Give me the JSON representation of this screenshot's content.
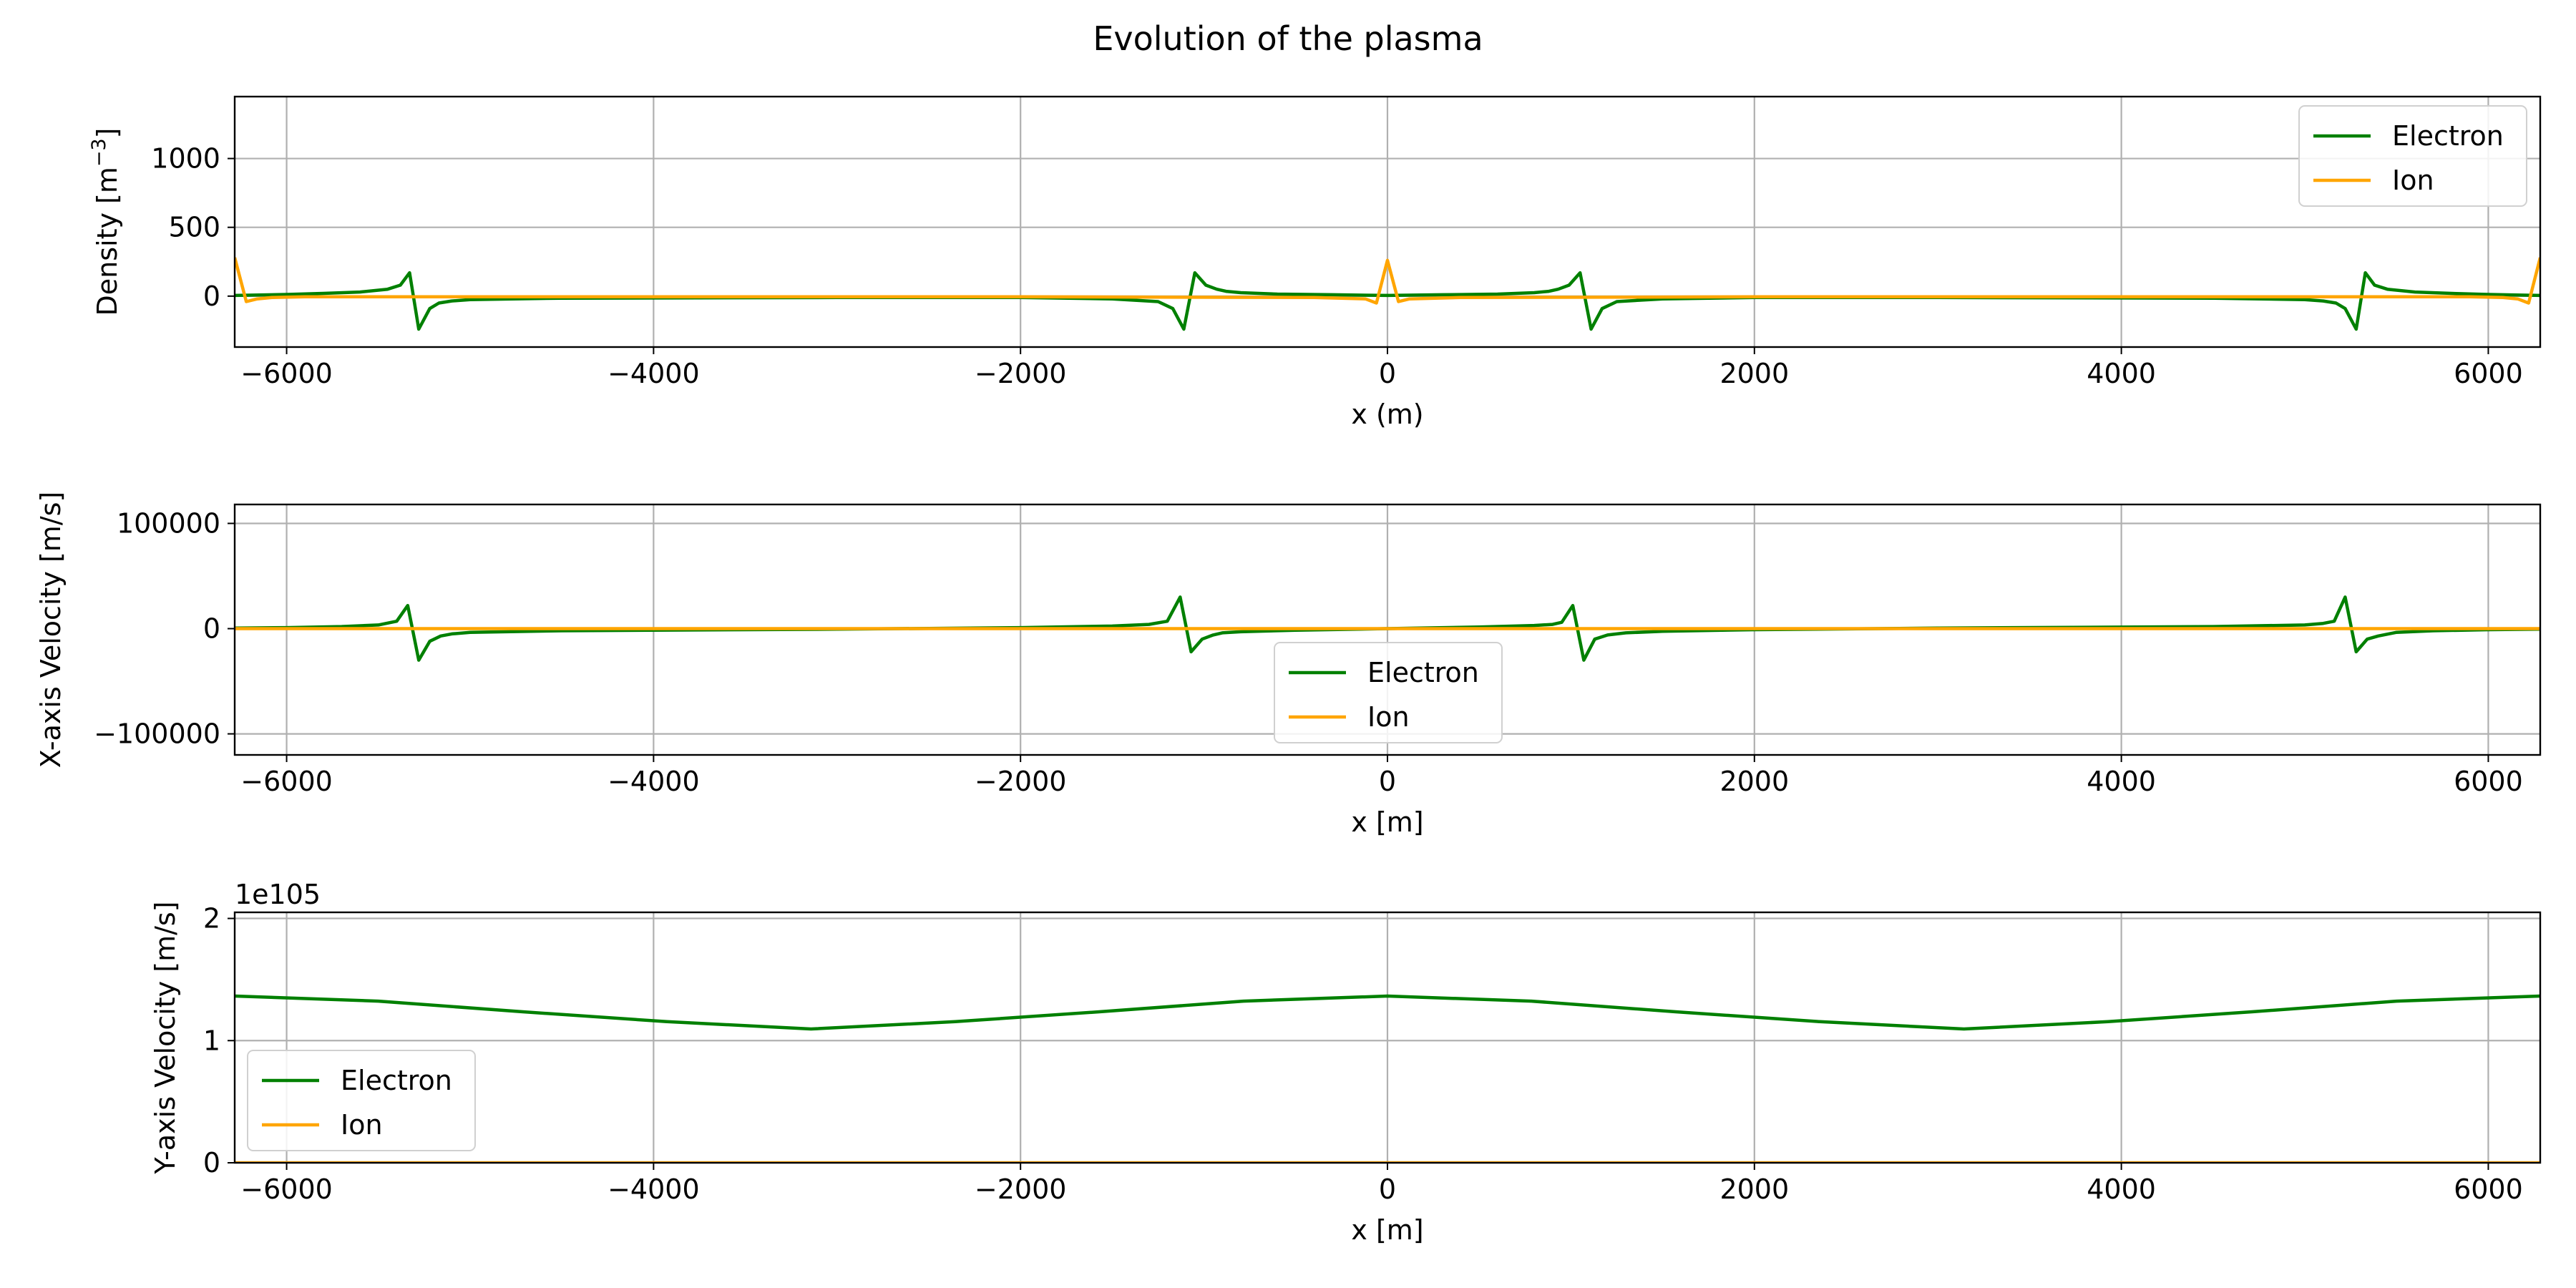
{
  "figure": {
    "title": "Evolution of the plasma"
  },
  "chart_data": [
    {
      "type": "line",
      "panel": "density",
      "xlabel": "x (m)",
      "ylabel": "Density [m",
      "ylabel_sup": "−3",
      "ylabel_end": "]",
      "xlim": [
        -6283,
        6283
      ],
      "ylim": [
        -370,
        1450
      ],
      "xticks": [
        -6000,
        -4000,
        -2000,
        0,
        2000,
        4000,
        6000
      ],
      "xtick_labels": [
        "−6000",
        "−4000",
        "−2000",
        "0",
        "2000",
        "4000",
        "6000"
      ],
      "yticks": [
        0,
        500,
        1000
      ],
      "ytick_labels": [
        "0",
        "500",
        "1000"
      ],
      "grid": true,
      "legend_position": "upper right",
      "series": [
        {
          "name": "Electron",
          "color": "#008000",
          "x": [
            -6283,
            -6150,
            -6000,
            -5800,
            -5600,
            -5450,
            -5380,
            -5330,
            -5280,
            -5220,
            -5170,
            -5100,
            -5000,
            -4500,
            -3000,
            -2000,
            -1500,
            -1250,
            -1170,
            -1110,
            -1050,
            -990,
            -930,
            -880,
            -800,
            -600,
            -300,
            0,
            300,
            600,
            800,
            880,
            930,
            990,
            1050,
            1110,
            1170,
            1250,
            1500,
            2000,
            3000,
            4500,
            5000,
            5100,
            5170,
            5220,
            5280,
            5330,
            5380,
            5450,
            5600,
            5800,
            6000,
            6150,
            6283
          ],
          "y": [
            5,
            8,
            12,
            20,
            30,
            50,
            80,
            170,
            -240,
            -90,
            -50,
            -35,
            -25,
            -15,
            -10,
            -10,
            -20,
            -40,
            -90,
            -240,
            170,
            80,
            50,
            35,
            25,
            15,
            10,
            5,
            10,
            15,
            25,
            35,
            50,
            80,
            170,
            -240,
            -90,
            -40,
            -20,
            -10,
            -10,
            -15,
            -25,
            -35,
            -50,
            -90,
            -240,
            170,
            80,
            50,
            30,
            20,
            12,
            8,
            5
          ]
        },
        {
          "name": "Ion",
          "color": "#ffa500",
          "x": [
            -6283,
            -6220,
            -6160,
            -6080,
            -5900,
            -4000,
            -2000,
            -400,
            -120,
            -60,
            0,
            60,
            120,
            400,
            2000,
            4000,
            5900,
            6080,
            6160,
            6220,
            6283
          ],
          "y": [
            280,
            -40,
            -20,
            -10,
            -5,
            -5,
            -5,
            -10,
            -20,
            -50,
            260,
            -40,
            -20,
            -10,
            -5,
            -5,
            -5,
            -10,
            -20,
            -50,
            280
          ]
        }
      ]
    },
    {
      "type": "line",
      "panel": "x-velocity",
      "xlabel": "x [m]",
      "ylabel": "X-axis Velocity [m/s]",
      "xlim": [
        -6283,
        6283
      ],
      "ylim": [
        -120000,
        118000
      ],
      "xticks": [
        -6000,
        -4000,
        -2000,
        0,
        2000,
        4000,
        6000
      ],
      "xtick_labels": [
        "−6000",
        "−4000",
        "−2000",
        "0",
        "2000",
        "4000",
        "6000"
      ],
      "yticks": [
        -100000,
        0,
        100000
      ],
      "ytick_labels": [
        "−100000",
        "0",
        "100000"
      ],
      "grid": true,
      "legend_position": "lower center",
      "series": [
        {
          "name": "Electron",
          "color": "#008000",
          "x": [
            -6283,
            -6000,
            -5700,
            -5500,
            -5400,
            -5340,
            -5280,
            -5220,
            -5160,
            -5100,
            -5000,
            -4500,
            -3000,
            -2000,
            -1500,
            -1300,
            -1200,
            -1130,
            -1070,
            -1010,
            -950,
            -900,
            -800,
            -500,
            0,
            500,
            800,
            900,
            950,
            1010,
            1070,
            1130,
            1200,
            1300,
            1500,
            2000,
            3000,
            4500,
            5000,
            5100,
            5160,
            5220,
            5280,
            5340,
            5400,
            5500,
            5700,
            6000,
            6283
          ],
          "y": [
            500,
            1000,
            2000,
            3500,
            7000,
            22000,
            -30000,
            -12000,
            -7000,
            -5000,
            -3500,
            -2000,
            -500,
            1000,
            2500,
            4000,
            7000,
            30000,
            -22000,
            -10000,
            -6000,
            -4000,
            -3000,
            -1500,
            0,
            1500,
            3000,
            4000,
            6000,
            22000,
            -30000,
            -10000,
            -6000,
            -4000,
            -2500,
            -1000,
            500,
            2000,
            3500,
            5000,
            7000,
            30000,
            -22000,
            -10000,
            -7000,
            -3500,
            -2000,
            -1000,
            -500
          ]
        },
        {
          "name": "Ion",
          "color": "#ffa500",
          "x": [
            -6283,
            -3000,
            0,
            3000,
            6283
          ],
          "y": [
            0,
            0,
            0,
            0,
            0
          ]
        }
      ]
    },
    {
      "type": "line",
      "panel": "y-velocity",
      "xlabel": "x [m]",
      "ylabel": "Y-axis Velocity [m/s]",
      "offset_text": "1e105",
      "xlim": [
        -6283,
        6283
      ],
      "ylim": [
        0,
        2.05
      ],
      "xticks": [
        -6000,
        -4000,
        -2000,
        0,
        2000,
        4000,
        6000
      ],
      "xtick_labels": [
        "−6000",
        "−4000",
        "−2000",
        "0",
        "2000",
        "4000",
        "6000"
      ],
      "yticks": [
        0,
        1,
        2
      ],
      "ytick_labels": [
        "0",
        "1",
        "2"
      ],
      "grid": true,
      "legend_position": "lower left",
      "series": [
        {
          "name": "Electron",
          "color": "#008000",
          "x": [
            -6283,
            -5500,
            -4712,
            -3927,
            -3142,
            -2356,
            -1571,
            -785,
            0,
            785,
            1571,
            2356,
            3142,
            3927,
            4712,
            5500,
            6283
          ],
          "y": [
            1.365,
            1.323,
            1.236,
            1.155,
            1.095,
            1.155,
            1.236,
            1.323,
            1.365,
            1.323,
            1.236,
            1.155,
            1.095,
            1.155,
            1.236,
            1.323,
            1.365
          ]
        },
        {
          "name": "Ion",
          "color": "#ffa500",
          "x": [
            -6283,
            0,
            6283
          ],
          "y": [
            0,
            0,
            0
          ]
        }
      ]
    }
  ]
}
